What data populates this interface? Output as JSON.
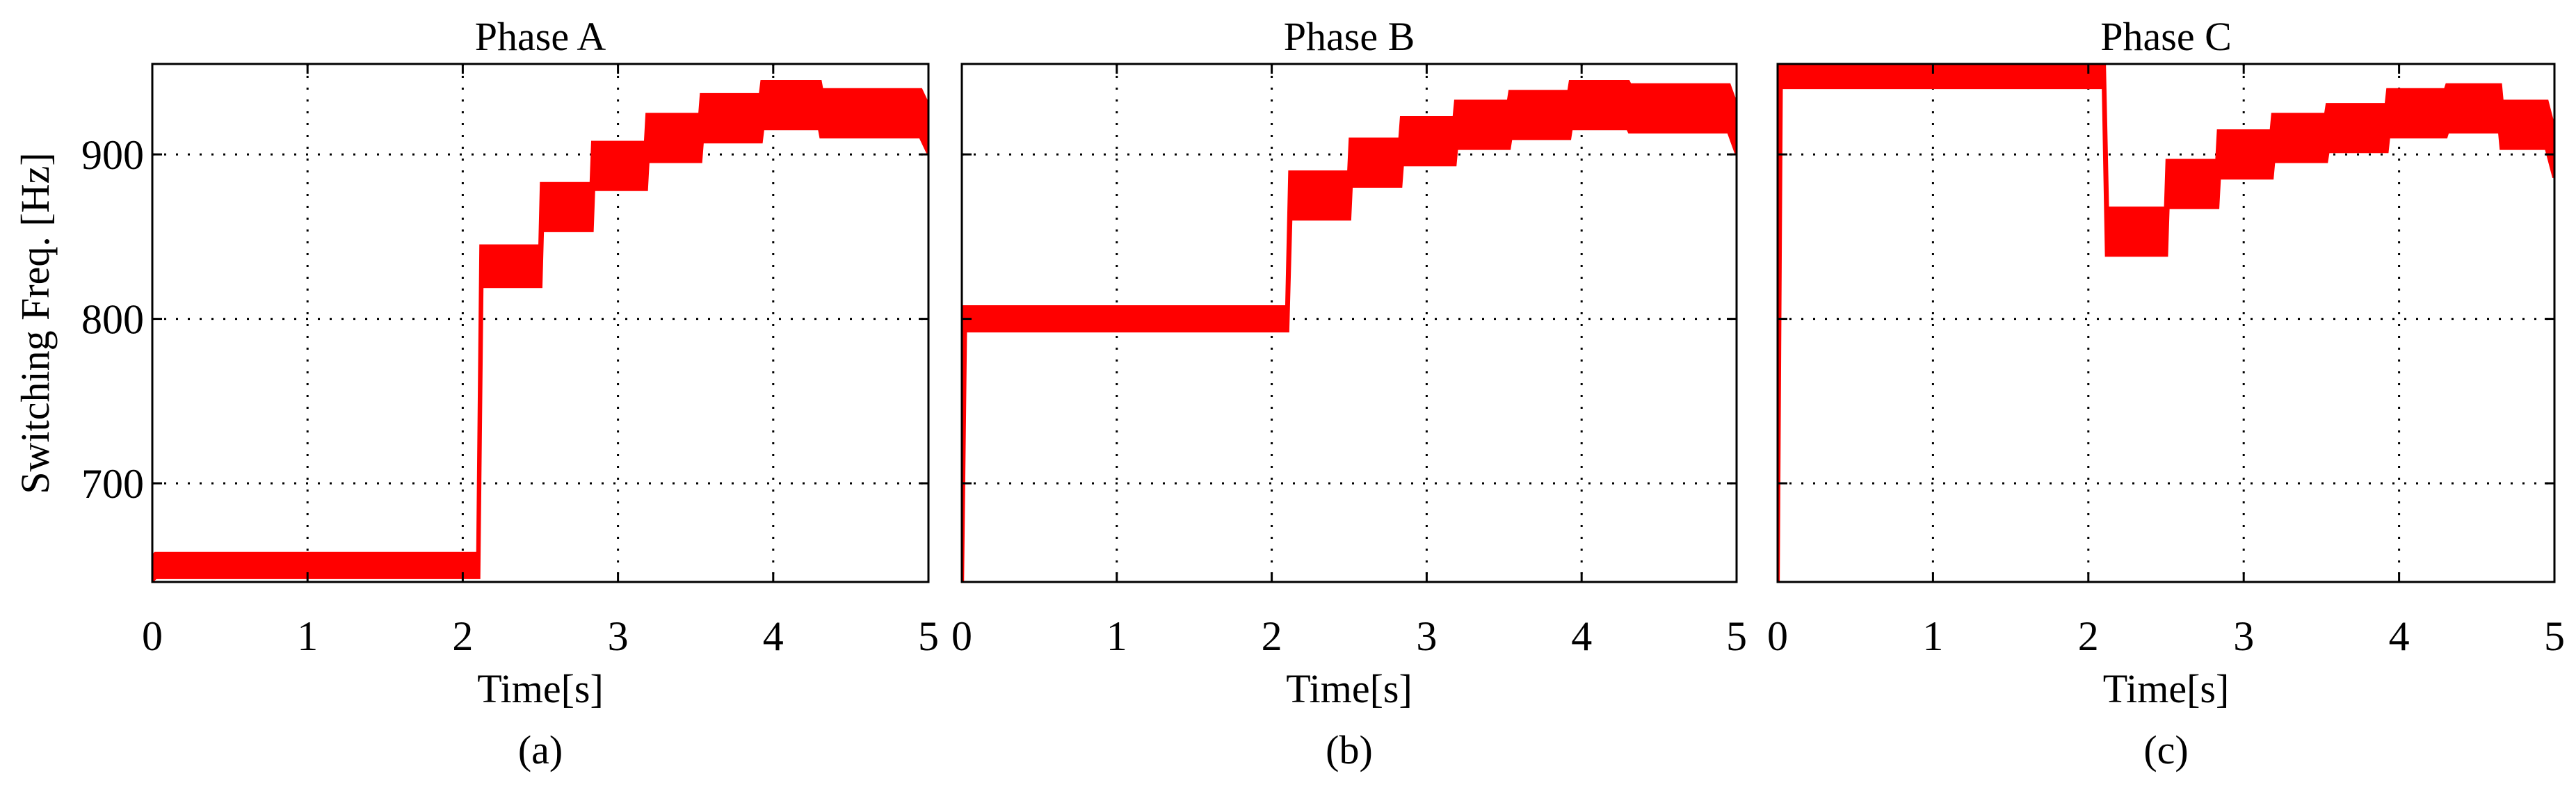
{
  "figure": {
    "ylabel": "Switching Freq. [Hz]"
  },
  "chart_data": [
    {
      "type": "line",
      "sublabel": "(a)",
      "title": "Phase  A",
      "xlabel": "Time[s]",
      "xlim": [
        0,
        5
      ],
      "ylim": [
        640,
        955
      ],
      "xticks": [
        "0",
        "1",
        "2",
        "3",
        "4",
        "5"
      ],
      "yticks": [
        "700",
        "800",
        "900"
      ],
      "grid": true,
      "series": [
        {
          "color": "#ff0000",
          "x": [
            0.0,
            0.02,
            2.1,
            2.12,
            2.5,
            2.51,
            2.83,
            2.84,
            3.18,
            3.19,
            3.53,
            3.54,
            3.92,
            3.93,
            4.3,
            4.31,
            4.95,
            5.0
          ],
          "y": [
            648,
            650,
            650,
            832,
            832,
            868,
            868,
            893,
            893,
            910,
            910,
            922,
            922,
            930,
            930,
            925,
            925,
            915
          ],
          "band": [
            7,
            7,
            7,
            12,
            12,
            14,
            14,
            14,
            14,
            14,
            14,
            14,
            14,
            14,
            14,
            14,
            14,
            14
          ]
        }
      ]
    },
    {
      "type": "line",
      "sublabel": "(b)",
      "title": "Phase  B",
      "xlabel": "Time[s]",
      "xlim": [
        0,
        5
      ],
      "ylim": [
        640,
        955
      ],
      "xticks": [
        "0",
        "1",
        "2",
        "3",
        "4",
        "5"
      ],
      "yticks": [
        "700",
        "800",
        "900"
      ],
      "grid": true,
      "series": [
        {
          "color": "#ff0000",
          "x": [
            0.0,
            0.02,
            2.1,
            2.12,
            2.5,
            2.51,
            2.83,
            2.84,
            3.18,
            3.19,
            3.53,
            3.54,
            3.92,
            3.93,
            4.3,
            4.31,
            4.95,
            5.0
          ],
          "y": [
            640,
            800,
            800,
            875,
            875,
            895,
            895,
            908,
            908,
            918,
            918,
            924,
            924,
            930,
            930,
            928,
            928,
            915
          ],
          "band": [
            7,
            7,
            7,
            14,
            14,
            14,
            14,
            14,
            14,
            14,
            14,
            14,
            14,
            14,
            14,
            14,
            14,
            14
          ]
        }
      ]
    },
    {
      "type": "line",
      "sublabel": "(c)",
      "title": "Phase  C",
      "xlabel": "Time[s]",
      "xlim": [
        0,
        5
      ],
      "ylim": [
        640,
        955
      ],
      "xticks": [
        "0",
        "1",
        "2",
        "3",
        "4",
        "5"
      ],
      "yticks": [
        "700",
        "800",
        "900"
      ],
      "grid": true,
      "series": [
        {
          "color": "#ff0000",
          "x": [
            0.0,
            0.02,
            2.1,
            2.12,
            2.5,
            2.51,
            2.83,
            2.84,
            3.18,
            3.19,
            3.53,
            3.54,
            3.92,
            3.93,
            4.3,
            4.31,
            4.65,
            4.66,
            4.95,
            5.0
          ],
          "y": [
            640,
            948,
            948,
            853,
            853,
            882,
            882,
            900,
            900,
            910,
            910,
            916,
            916,
            925,
            925,
            928,
            928,
            918,
            918,
            900
          ],
          "band": [
            7,
            7,
            7,
            14,
            14,
            14,
            14,
            14,
            14,
            14,
            14,
            14,
            14,
            14,
            14,
            14,
            14,
            14,
            14,
            14
          ]
        }
      ]
    }
  ]
}
